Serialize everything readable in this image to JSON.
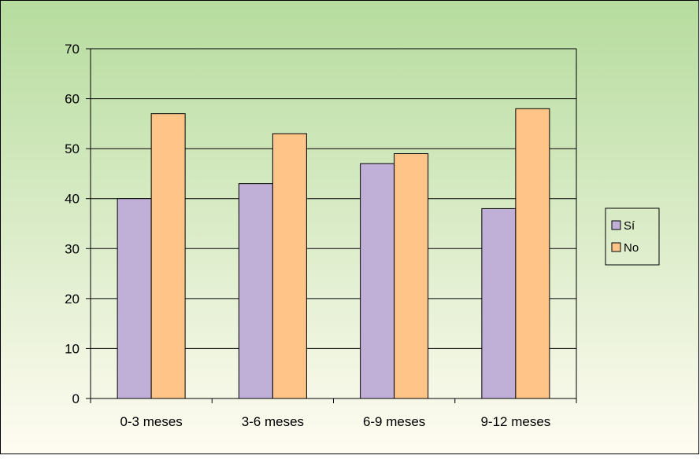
{
  "chart_data": {
    "type": "bar",
    "categories": [
      "0-3 meses",
      "3-6 meses",
      "6-9 meses",
      "9-12 meses"
    ],
    "series": [
      {
        "name": "Sí",
        "values": [
          40,
          43,
          47,
          38
        ],
        "color": "#c0b0d8"
      },
      {
        "name": "No",
        "values": [
          57,
          53,
          49,
          58
        ],
        "color": "#ffc488"
      }
    ],
    "y_ticks": [
      "0",
      "10",
      "20",
      "30",
      "40",
      "50",
      "60",
      "70"
    ],
    "ylim": [
      0,
      70
    ],
    "title": "",
    "xlabel": "",
    "ylabel": "",
    "grid": true,
    "legend_position": "right"
  },
  "colors": {
    "background_top": "#b6dc9e",
    "background_bottom": "#fffcf2",
    "plot_area": "transparent",
    "axis": "#000000",
    "bar_outline": "#000000"
  }
}
